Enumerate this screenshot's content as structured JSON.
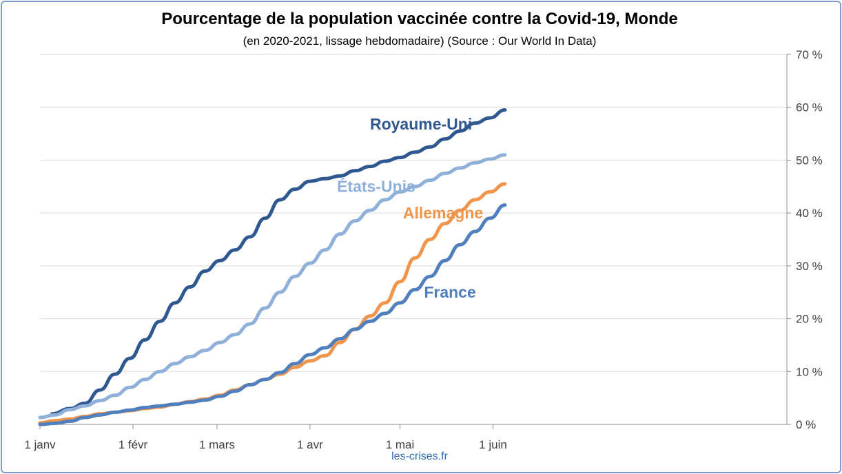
{
  "chart_data": {
    "type": "line",
    "title": "Pourcentage de la population vaccinée contre la Covid-19, Monde",
    "subtitle": "(en 2020-2021, lissage hebdomadaire) (Source : Our World In Data)",
    "source_label": "les-crises.fr",
    "x_start": "2021-01-01",
    "x_end": "2021-06-07",
    "x_ticks": [
      {
        "label": "1 janv",
        "day": 0
      },
      {
        "label": "1 févr",
        "day": 31
      },
      {
        "label": "1 mars",
        "day": 59
      },
      {
        "label": "1 avr",
        "day": 90
      },
      {
        "label": "1 mai",
        "day": 120
      },
      {
        "label": "1 juin",
        "day": 151
      }
    ],
    "y_ticks": [
      "0 %",
      "10 %",
      "20 %",
      "30 %",
      "40 %",
      "50 %",
      "60 %",
      "70 %"
    ],
    "ylim": [
      0,
      70
    ],
    "y_axis_side": "right",
    "grid": true,
    "series": [
      {
        "name": "Royaume-Uni",
        "color": "#2f5890",
        "points": [
          [
            4,
            2.0
          ],
          [
            10,
            3.0
          ],
          [
            15,
            4.0
          ],
          [
            20,
            6.5
          ],
          [
            25,
            9.5
          ],
          [
            30,
            12.5
          ],
          [
            35,
            16.0
          ],
          [
            40,
            19.5
          ],
          [
            45,
            23.0
          ],
          [
            50,
            26.0
          ],
          [
            55,
            29.0
          ],
          [
            60,
            31.0
          ],
          [
            65,
            33.0
          ],
          [
            70,
            35.5
          ],
          [
            75,
            39.0
          ],
          [
            80,
            42.5
          ],
          [
            85,
            44.5
          ],
          [
            90,
            46.0
          ],
          [
            95,
            46.5
          ],
          [
            100,
            47.0
          ],
          [
            105,
            48.0
          ],
          [
            110,
            48.8
          ],
          [
            115,
            49.8
          ],
          [
            120,
            50.5
          ],
          [
            125,
            51.5
          ],
          [
            130,
            52.5
          ],
          [
            135,
            54.0
          ],
          [
            140,
            55.5
          ],
          [
            145,
            57.0
          ],
          [
            150,
            58.0
          ],
          [
            155,
            59.5
          ]
        ]
      },
      {
        "name": "États-Unis",
        "color": "#8fb0d8",
        "points": [
          [
            0,
            1.3
          ],
          [
            5,
            1.8
          ],
          [
            10,
            2.8
          ],
          [
            15,
            3.5
          ],
          [
            20,
            4.5
          ],
          [
            25,
            5.5
          ],
          [
            30,
            7.0
          ],
          [
            35,
            8.5
          ],
          [
            40,
            10.0
          ],
          [
            45,
            11.5
          ],
          [
            50,
            12.8
          ],
          [
            55,
            14.0
          ],
          [
            60,
            15.5
          ],
          [
            65,
            17.0
          ],
          [
            70,
            19.0
          ],
          [
            75,
            22.0
          ],
          [
            80,
            25.0
          ],
          [
            85,
            28.0
          ],
          [
            90,
            30.5
          ],
          [
            95,
            33.0
          ],
          [
            100,
            36.0
          ],
          [
            105,
            38.5
          ],
          [
            110,
            40.5
          ],
          [
            115,
            42.5
          ],
          [
            120,
            44.0
          ],
          [
            125,
            45.0
          ],
          [
            130,
            46.2
          ],
          [
            135,
            47.5
          ],
          [
            140,
            48.5
          ],
          [
            145,
            49.5
          ],
          [
            150,
            50.2
          ],
          [
            155,
            51.0
          ]
        ]
      },
      {
        "name": "Allemagne",
        "color": "#f0954c",
        "points": [
          [
            0,
            0.3
          ],
          [
            5,
            0.7
          ],
          [
            10,
            1.0
          ],
          [
            15,
            1.5
          ],
          [
            20,
            2.0
          ],
          [
            25,
            2.3
          ],
          [
            30,
            2.6
          ],
          [
            35,
            3.0
          ],
          [
            40,
            3.3
          ],
          [
            45,
            3.8
          ],
          [
            50,
            4.3
          ],
          [
            55,
            4.8
          ],
          [
            60,
            5.5
          ],
          [
            65,
            6.5
          ],
          [
            70,
            7.5
          ],
          [
            75,
            8.5
          ],
          [
            80,
            9.5
          ],
          [
            85,
            10.8
          ],
          [
            90,
            12.0
          ],
          [
            95,
            13.0
          ],
          [
            100,
            15.5
          ],
          [
            105,
            18.0
          ],
          [
            110,
            20.5
          ],
          [
            115,
            23.0
          ],
          [
            120,
            27.0
          ],
          [
            125,
            31.5
          ],
          [
            130,
            35.0
          ],
          [
            135,
            38.0
          ],
          [
            140,
            40.5
          ],
          [
            145,
            42.5
          ],
          [
            150,
            44.0
          ],
          [
            155,
            45.5
          ]
        ]
      },
      {
        "name": "France",
        "color": "#4f7fbc",
        "points": [
          [
            0,
            0.0
          ],
          [
            5,
            0.2
          ],
          [
            10,
            0.6
          ],
          [
            15,
            1.3
          ],
          [
            20,
            1.8
          ],
          [
            25,
            2.3
          ],
          [
            30,
            2.7
          ],
          [
            35,
            3.2
          ],
          [
            40,
            3.5
          ],
          [
            45,
            3.8
          ],
          [
            50,
            4.2
          ],
          [
            55,
            4.6
          ],
          [
            60,
            5.3
          ],
          [
            65,
            6.3
          ],
          [
            70,
            7.5
          ],
          [
            75,
            8.5
          ],
          [
            80,
            9.8
          ],
          [
            85,
            11.5
          ],
          [
            90,
            13.2
          ],
          [
            95,
            14.5
          ],
          [
            100,
            16.2
          ],
          [
            105,
            18.0
          ],
          [
            110,
            19.5
          ],
          [
            115,
            21.0
          ],
          [
            120,
            23.0
          ],
          [
            125,
            25.5
          ],
          [
            130,
            28.0
          ],
          [
            135,
            31.0
          ],
          [
            140,
            34.0
          ],
          [
            145,
            36.5
          ],
          [
            150,
            39.0
          ],
          [
            155,
            41.5
          ]
        ]
      }
    ],
    "annotations": [
      {
        "text": "Royaume-Uni",
        "day": 110,
        "value": 55.8,
        "color": "#2f5890"
      },
      {
        "text": "États-Unis",
        "day": 99,
        "value": 44.0,
        "color": "#8fb0d8"
      },
      {
        "text": "Allemagne",
        "day": 121,
        "value": 39.0,
        "color": "#f0954c"
      },
      {
        "text": "France",
        "day": 128,
        "value": 24.0,
        "color": "#4f7fbc"
      }
    ]
  }
}
